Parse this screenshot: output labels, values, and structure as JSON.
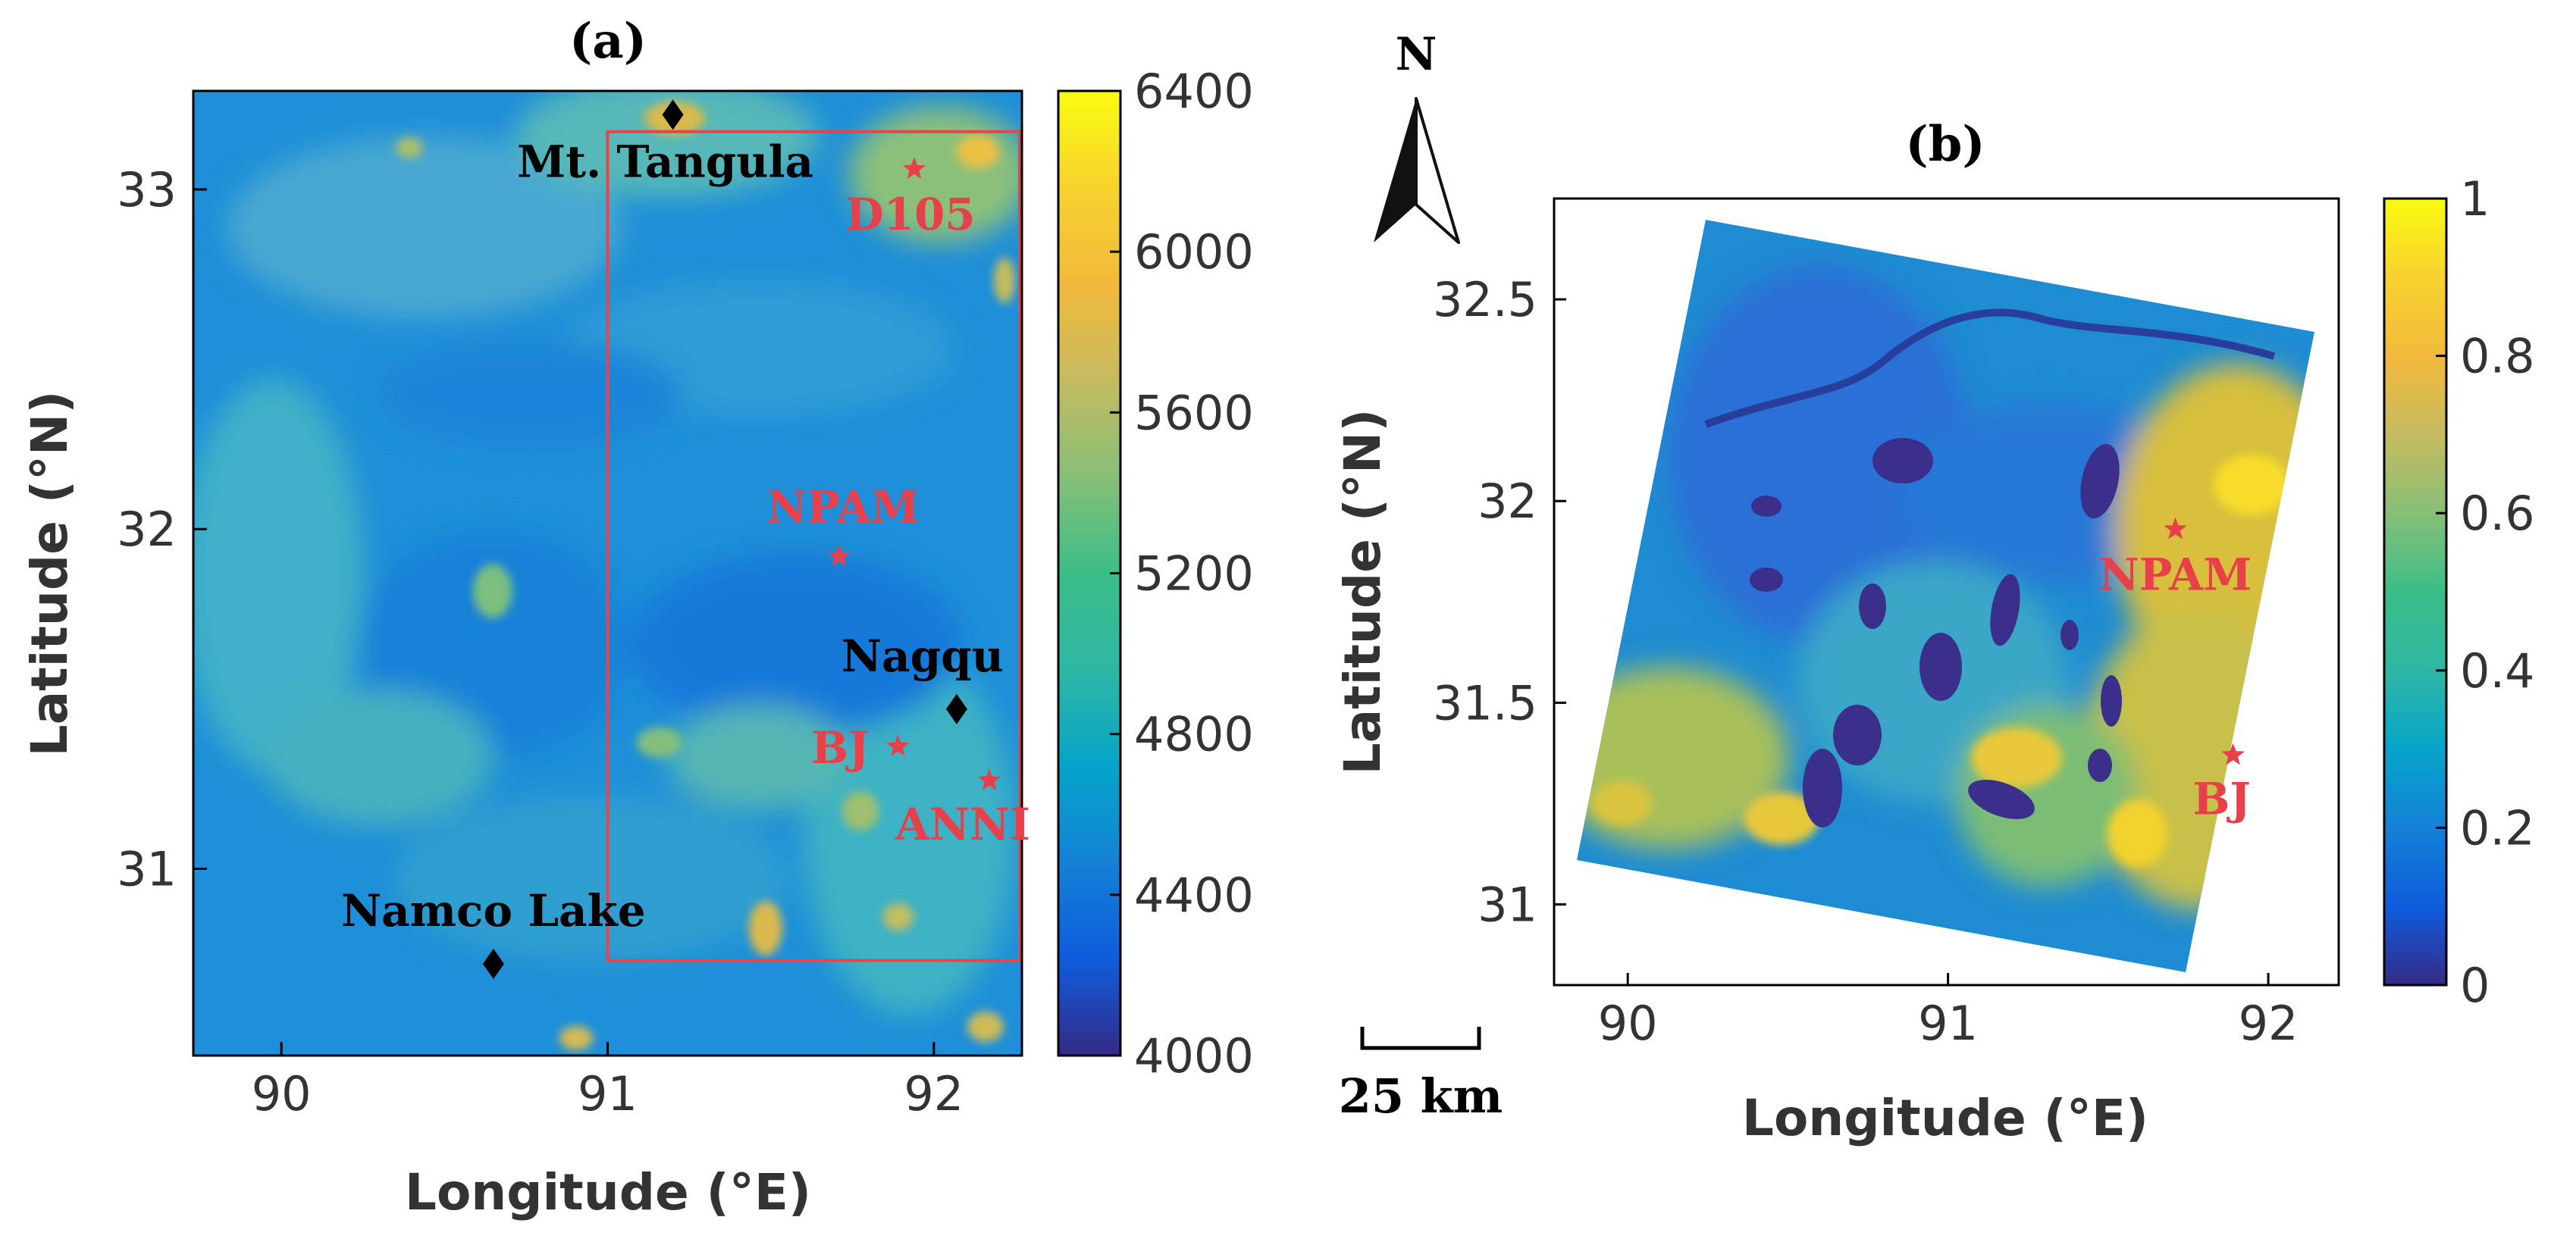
{
  "panel_a": {
    "title": "(a)",
    "xlabel": "Longitude  (°E)",
    "ylabel": "Latitude  (°N)",
    "x_range": [
      89.73,
      92.27
    ],
    "y_range": [
      30.45,
      33.29
    ],
    "x_ticks": [
      {
        "value": 90,
        "label": "90"
      },
      {
        "value": 91,
        "label": "91"
      },
      {
        "value": 92,
        "label": "92"
      }
    ],
    "y_ticks": [
      {
        "value": 31,
        "label": "31"
      },
      {
        "value": 32,
        "label": "32"
      },
      {
        "value": 33,
        "label": "33"
      }
    ],
    "study_box": {
      "lon": [
        91.0,
        92.27
      ],
      "lat": [
        30.73,
        33.17
      ],
      "color": "#e8454b"
    },
    "stations": [
      {
        "name": "D105",
        "lon": 91.94,
        "lat": 33.06
      },
      {
        "name": "NPAM",
        "lon": 91.71,
        "lat": 31.92
      },
      {
        "name": "BJ",
        "lon": 91.89,
        "lat": 31.36
      },
      {
        "name": "ANNI",
        "lon": 92.17,
        "lat": 31.26
      }
    ],
    "places": [
      {
        "name": "Mt. Tangula",
        "lon": 91.2,
        "lat": 33.22
      },
      {
        "name": "Nagqu",
        "lon": 92.07,
        "lat": 31.47
      },
      {
        "name": "Namco Lake",
        "lon": 90.65,
        "lat": 30.72
      }
    ],
    "colorbar": {
      "min": 4000,
      "max": 6400,
      "ticks": [
        "4000",
        "4400",
        "4800",
        "5200",
        "5600",
        "6000",
        "6400"
      ]
    }
  },
  "panel_b": {
    "title": "(b)",
    "xlabel": "Longitude  (°E)",
    "ylabel": "Latitude  (°N)",
    "x_range": [
      89.77,
      92.22
    ],
    "y_range": [
      30.8,
      32.75
    ],
    "x_ticks": [
      {
        "value": 90,
        "label": "90"
      },
      {
        "value": 91,
        "label": "91"
      },
      {
        "value": 92,
        "label": "92"
      }
    ],
    "y_ticks": [
      {
        "value": 31,
        "label": "31"
      },
      {
        "value": 31.5,
        "label": "31.5"
      },
      {
        "value": 32,
        "label": "32"
      },
      {
        "value": 32.5,
        "label": "32.5"
      }
    ],
    "stations": [
      {
        "name": "NPAM",
        "lon": 91.71,
        "lat": 31.93
      },
      {
        "name": "BJ",
        "lon": 91.89,
        "lat": 31.37
      }
    ],
    "colorbar": {
      "min": 0,
      "max": 1,
      "ticks": [
        "0",
        "0.2",
        "0.4",
        "0.6",
        "0.8",
        "1"
      ]
    }
  },
  "north_arrow": {
    "label": "N"
  },
  "scale_bar": {
    "label": "25 km"
  },
  "colors": {
    "station": "#e8404a",
    "place": "#000000",
    "frame": "#000000"
  }
}
